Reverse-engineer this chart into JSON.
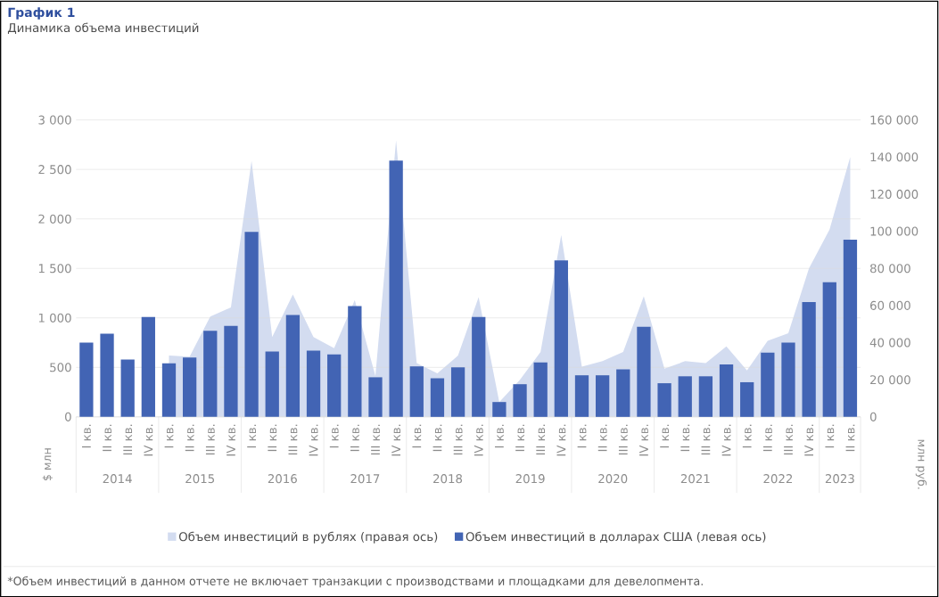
{
  "chart_data": {
    "type": "bar",
    "title": "График 1",
    "subtitle": "Динамика объема инвестиций",
    "categories": [
      "I кв.",
      "II кв.",
      "III кв.",
      "IV кв.",
      "I кв.",
      "II кв.",
      "III кв.",
      "IV кв.",
      "I кв.",
      "II кв.",
      "III кв.",
      "IV кв.",
      "I кв.",
      "II кв.",
      "III кв.",
      "IV кв.",
      "I кв.",
      "II кв.",
      "III кв.",
      "IV кв.",
      "I кв.",
      "II кв.",
      "III кв.",
      "IV кв.",
      "I кв.",
      "II кв.",
      "III кв.",
      "IV кв.",
      "I кв.",
      "II кв.",
      "III кв.",
      "IV кв.",
      "I кв.",
      "II кв.",
      "III кв.",
      "IV кв.",
      "I кв.",
      "II кв."
    ],
    "series": [
      {
        "name": "Объем инвестиций в рублях (правая ось)",
        "type": "area",
        "axis": "y2",
        "color": "#d3dcf0",
        "values": [
          null,
          null,
          null,
          null,
          33000,
          32500,
          54000,
          59000,
          138000,
          43000,
          66000,
          43000,
          37000,
          63000,
          22000,
          149000,
          29000,
          23500,
          33000,
          64500,
          8000,
          20000,
          35000,
          98000,
          27000,
          30000,
          35000,
          65000,
          26000,
          30000,
          29000,
          38000,
          25000,
          41000,
          45000,
          80000,
          101000,
          140000
        ]
      },
      {
        "name": "Объем инвестиций в долларах США (левая ось)",
        "color": "#4264b4",
        "values": [
          750,
          840,
          580,
          1010,
          540,
          600,
          870,
          920,
          1870,
          660,
          1030,
          670,
          630,
          1120,
          400,
          2590,
          510,
          390,
          500,
          1010,
          150,
          330,
          550,
          1580,
          420,
          420,
          480,
          910,
          340,
          410,
          410,
          530,
          350,
          650,
          750,
          1160,
          1360,
          1790
        ]
      }
    ],
    "ylabel": "$ млн",
    "y2label": "млн руб.",
    "ylim": [
      0,
      3000
    ],
    "yticks": [
      0,
      500,
      {
        "value": 1000,
        "label": "1 000"
      },
      {
        "value": 1500,
        "label": "1 500"
      },
      {
        "value": 2000,
        "label": "2 000"
      },
      {
        "value": 2500,
        "label": "2 500"
      },
      {
        "value": 3000,
        "label": "3 000"
      }
    ],
    "y2lim": [
      0,
      160000
    ],
    "y2ticks": [
      0,
      {
        "value": 20000,
        "label": "20 000"
      },
      {
        "value": 40000,
        "label": "40 000"
      },
      {
        "value": 60000,
        "label": "60 000"
      },
      {
        "value": 80000,
        "label": "80 000"
      },
      {
        "value": 100000,
        "label": "100 000"
      },
      {
        "value": 120000,
        "label": "120 000"
      },
      {
        "value": 140000,
        "label": "140 000"
      },
      {
        "value": 160000,
        "label": "160 000"
      }
    ],
    "grid": "y",
    "legend": "bottom",
    "annotations": [
      "*Объем инвестиций в данном отчете не включает транзакции с производствами и площадками для девелопмента.",
      "2014",
      "2015",
      "2016",
      "2017",
      "2018",
      "2019",
      "2020",
      "2021",
      "2022",
      "2023"
    ]
  }
}
